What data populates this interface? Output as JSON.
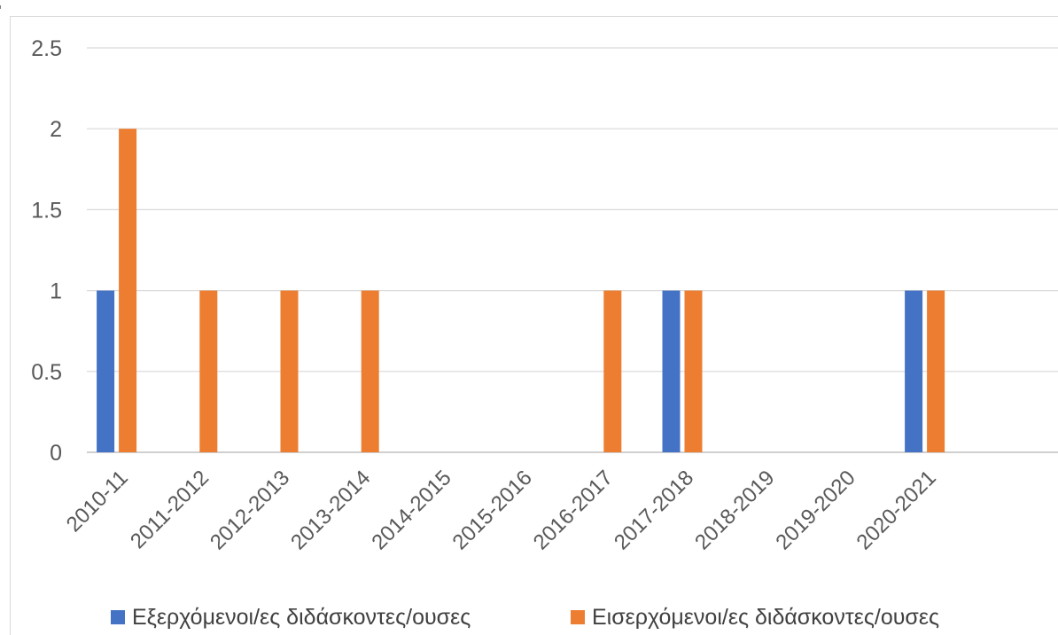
{
  "chart_data": {
    "type": "bar",
    "title": "",
    "xlabel": "",
    "ylabel": "",
    "categories": [
      "2010-11",
      "2011-2012",
      "2012-2013",
      "2013-2014",
      "2014-2015",
      "2015-2016",
      "2016-2017",
      "2017-2018",
      "2018-2019",
      "2019-2020",
      "2020-2021"
    ],
    "series": [
      {
        "name": "Εξερχόμενοι/ες διδάσκοντες/ουσες",
        "color": "#4472c4",
        "values": [
          1,
          0,
          0,
          0,
          0,
          0,
          0,
          1,
          0,
          0,
          1
        ]
      },
      {
        "name": "Εισερχόμενοι/ες διδάσκοντες/ουσες",
        "color": "#ed7d31",
        "values": [
          2,
          1,
          1,
          1,
          0,
          0,
          1,
          1,
          0,
          0,
          1
        ]
      }
    ],
    "ylim": [
      0,
      2.5
    ],
    "yticks": [
      "0",
      "0.5",
      "1",
      "1.5",
      "2",
      "2.5"
    ],
    "grid": true,
    "legend_position": "bottom"
  }
}
